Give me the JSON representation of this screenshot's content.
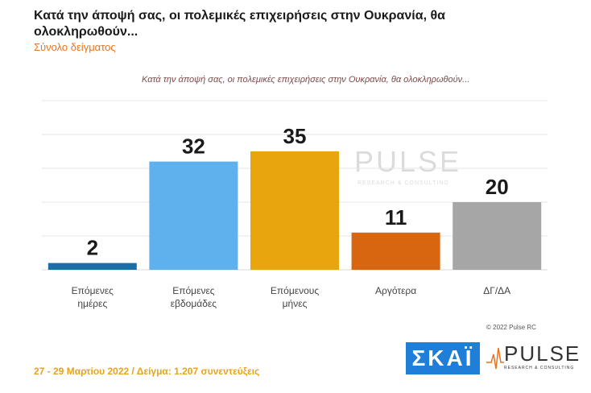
{
  "title": "Κατά την άποψή σας, οι πολεμικές επιχειρήσεις στην Ουκρανία, θα ολοκληρωθούν...",
  "subtitle": "Σύνολο δείγματος",
  "inner_title": "Κατά την άποψή σας, οι πολεμικές επιχειρήσεις στην Ουκρανία, θα ολοκληρωθούν...",
  "copyright": "© 2022 Pulse RC",
  "footer": "27 - 29 Μαρτίου 2022 / Δείγμα: 1.207 συνεντεύξεις",
  "logos": {
    "skai": "ΣΚΑΪ",
    "pulse": "PULSE",
    "pulse_sub": "RESEARCH & CONSULTING"
  },
  "chart_data": {
    "type": "bar",
    "categories": [
      [
        "Επόμενες",
        "ημέρες"
      ],
      [
        "Επόμενες",
        "εβδομάδες"
      ],
      [
        "Επόμενους",
        "μήνες"
      ],
      [
        "Αργότερα"
      ],
      [
        "ΔΓ/ΔΑ"
      ]
    ],
    "values": [
      2,
      32,
      35,
      11,
      20
    ],
    "colors": [
      "#1a6fa8",
      "#5eb1ec",
      "#e9a50d",
      "#d8650f",
      "#a6a6a6"
    ],
    "ylim": [
      0,
      50
    ],
    "grid": true
  }
}
